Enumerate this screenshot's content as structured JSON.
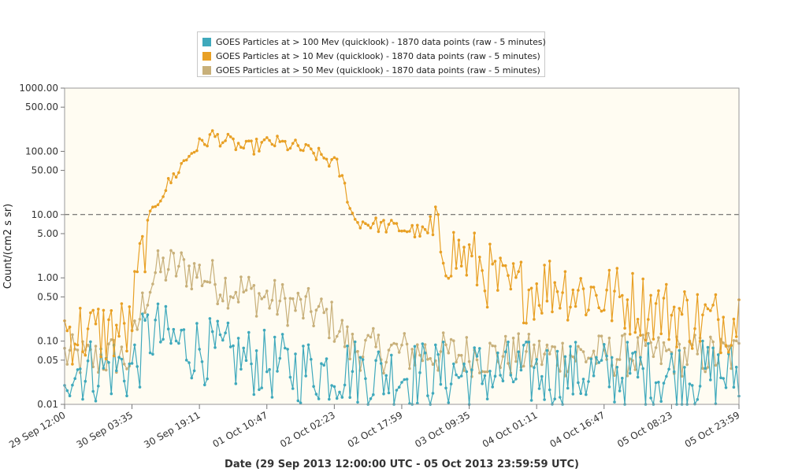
{
  "chart_data": {
    "type": "line",
    "ylabel": "Count/(cm2 s sr)",
    "xlabel": "Date (29 Sep 2013 12:00:00 UTC - 05 Oct 2013 23:59:59 UTC)",
    "y_scale": "log",
    "ylim": [
      0.01,
      1000
    ],
    "y_ticks": [
      "1000.00",
      "500.00",
      "100.00",
      "50.00",
      "10.00",
      "5.00",
      "1.00",
      "0.50",
      "0.10",
      "0.05",
      "0.01"
    ],
    "x_ticks": [
      "29 Sep 12:00",
      "30 Sep 03:35",
      "30 Sep 19:11",
      "01 Oct 10:47",
      "02 Oct 02:23",
      "02 Oct 17:59",
      "03 Oct 09:35",
      "04 Oct 01:11",
      "04 Oct 16:47",
      "05 Oct 08:23",
      "05 Oct 23:59"
    ],
    "reference_lines": [
      10,
      1000
    ],
    "grid": false,
    "legend_position": "top",
    "background_color": "#fffcf2",
    "series": [
      {
        "name": "GOES Particles at > 100 Mev (quicklook) - 1870 data points (raw - 5 minutes)",
        "color": "#3fa9bc",
        "points": [
          [
            "29 Sep 12:00",
            0.04
          ],
          [
            "29 Sep 18:00",
            0.035
          ],
          [
            "30 Sep 00:00",
            0.04
          ],
          [
            "30 Sep 03:00",
            0.035
          ],
          [
            "30 Sep 05:00",
            0.05
          ],
          [
            "30 Sep 07:00",
            0.12
          ],
          [
            "30 Sep 09:00",
            0.14
          ],
          [
            "30 Sep 12:00",
            0.1
          ],
          [
            "30 Sep 18:00",
            0.08
          ],
          [
            "01 Oct 00:00",
            0.06
          ],
          [
            "01 Oct 06:00",
            0.05
          ],
          [
            "01 Oct 12:00",
            0.04
          ],
          [
            "01 Oct 18:00",
            0.035
          ],
          [
            "02 Oct 00:00",
            0.035
          ],
          [
            "02 Oct 06:00",
            0.035
          ],
          [
            "02 Oct 12:00",
            0.03
          ],
          [
            "03 Oct 00:00",
            0.03
          ],
          [
            "03 Oct 12:00",
            0.03
          ],
          [
            "04 Oct 00:00",
            0.03
          ],
          [
            "04 Oct 12:00",
            0.03
          ],
          [
            "05 Oct 00:00",
            0.03
          ],
          [
            "05 Oct 12:00",
            0.03
          ],
          [
            "05 Oct 23:59",
            0.03
          ]
        ]
      },
      {
        "name": "GOES Particles at > 10 Mev (quicklook) - 1870 data points (raw - 5 minutes)",
        "color": "#e8a025",
        "points": [
          [
            "29 Sep 12:00",
            0.15
          ],
          [
            "29 Sep 18:00",
            0.13
          ],
          [
            "30 Sep 00:00",
            0.15
          ],
          [
            "30 Sep 03:00",
            0.14
          ],
          [
            "30 Sep 05:00",
            1.0
          ],
          [
            "30 Sep 07:00",
            6.0
          ],
          [
            "30 Sep 09:00",
            15
          ],
          [
            "30 Sep 12:00",
            30
          ],
          [
            "30 Sep 15:00",
            60
          ],
          [
            "30 Sep 18:00",
            110
          ],
          [
            "30 Sep 21:00",
            150
          ],
          [
            "30 Sep 22:00",
            180
          ],
          [
            "01 Oct 02:00",
            140
          ],
          [
            "01 Oct 06:00",
            110
          ],
          [
            "01 Oct 12:00",
            140
          ],
          [
            "01 Oct 18:00",
            115
          ],
          [
            "02 Oct 00:00",
            80
          ],
          [
            "02 Oct 03:00",
            60
          ],
          [
            "02 Oct 05:00",
            25
          ],
          [
            "02 Oct 07:00",
            8
          ],
          [
            "02 Oct 12:00",
            7
          ],
          [
            "02 Oct 18:00",
            6
          ],
          [
            "03 Oct 00:00",
            5
          ],
          [
            "03 Oct 06:00",
            2.5
          ],
          [
            "03 Oct 12:00",
            1.5
          ],
          [
            "03 Oct 18:00",
            0.6
          ],
          [
            "04 Oct 00:00",
            0.7
          ],
          [
            "04 Oct 06:00",
            0.8
          ],
          [
            "04 Oct 12:00",
            0.6
          ],
          [
            "04 Oct 18:00",
            0.5
          ],
          [
            "05 Oct 00:00",
            0.4
          ],
          [
            "05 Oct 06:00",
            0.3
          ],
          [
            "05 Oct 12:00",
            0.25
          ],
          [
            "05 Oct 18:00",
            0.2
          ],
          [
            "05 Oct 23:59",
            0.25
          ]
        ]
      },
      {
        "name": "GOES Particles at > 50 Mev (quicklook) - 1870 data points (raw - 5 minutes)",
        "color": "#c8b07a",
        "points": [
          [
            "29 Sep 12:00",
            0.06
          ],
          [
            "29 Sep 18:00",
            0.05
          ],
          [
            "30 Sep 00:00",
            0.06
          ],
          [
            "30 Sep 03:00",
            0.05
          ],
          [
            "30 Sep 05:00",
            0.2
          ],
          [
            "30 Sep 07:00",
            0.6
          ],
          [
            "30 Sep 09:00",
            1.2
          ],
          [
            "30 Sep 12:00",
            1.5
          ],
          [
            "30 Sep 16:00",
            1.4
          ],
          [
            "30 Sep 20:00",
            1.1
          ],
          [
            "01 Oct 00:00",
            0.8
          ],
          [
            "01 Oct 06:00",
            0.6
          ],
          [
            "01 Oct 12:00",
            0.45
          ],
          [
            "01 Oct 18:00",
            0.35
          ],
          [
            "02 Oct 00:00",
            0.25
          ],
          [
            "02 Oct 03:00",
            0.18
          ],
          [
            "02 Oct 06:00",
            0.08
          ],
          [
            "02 Oct 12:00",
            0.07
          ],
          [
            "03 Oct 00:00",
            0.065
          ],
          [
            "03 Oct 12:00",
            0.06
          ],
          [
            "04 Oct 00:00",
            0.06
          ],
          [
            "04 Oct 12:00",
            0.06
          ],
          [
            "05 Oct 00:00",
            0.06
          ],
          [
            "05 Oct 12:00",
            0.06
          ],
          [
            "05 Oct 23:59",
            0.06
          ]
        ]
      }
    ]
  }
}
